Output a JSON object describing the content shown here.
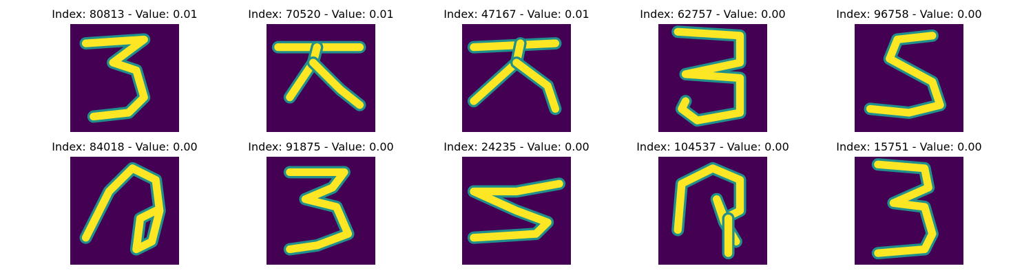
{
  "colors": {
    "background": "#440154",
    "mid": "#21908d",
    "foreground": "#fde725"
  },
  "panels": [
    {
      "title": "Index: 80813 - Value: 0.01",
      "glyph": "three-a",
      "strokes": [
        [
          [
            4,
            5
          ],
          [
            19,
            4
          ],
          [
            11,
            10
          ],
          [
            17,
            12
          ],
          [
            19,
            19
          ],
          [
            15,
            23
          ],
          [
            6,
            24
          ]
        ]
      ]
    },
    {
      "title": "Index: 70520 - Value: 0.01",
      "glyph": "dae-a",
      "strokes": [
        [
          [
            3,
            6
          ],
          [
            24,
            6
          ]
        ],
        [
          [
            13,
            6
          ],
          [
            12,
            10
          ],
          [
            6,
            19
          ]
        ],
        [
          [
            12,
            10
          ],
          [
            19,
            17
          ],
          [
            24,
            21
          ]
        ]
      ]
    },
    {
      "title": "Index: 47167 - Value: 0.01",
      "glyph": "dae-b",
      "strokes": [
        [
          [
            3,
            6
          ],
          [
            24,
            5
          ]
        ],
        [
          [
            15,
            5
          ],
          [
            14,
            10
          ],
          [
            3,
            20
          ]
        ],
        [
          [
            14,
            10
          ],
          [
            22,
            16
          ],
          [
            24,
            22
          ]
        ]
      ]
    },
    {
      "title": "Index: 62757 - Value: 0.00",
      "glyph": "three-b",
      "strokes": [
        [
          [
            5,
            2
          ],
          [
            21,
            3
          ],
          [
            21,
            10
          ],
          [
            7,
            13
          ],
          [
            21,
            14
          ],
          [
            21,
            23
          ],
          [
            10,
            25
          ],
          [
            6,
            22
          ],
          [
            7,
            20
          ]
        ]
      ]
    },
    {
      "title": "Index: 96758 - Value: 0.00",
      "glyph": "five-a",
      "strokes": [
        [
          [
            20,
            3
          ],
          [
            11,
            4
          ],
          [
            9,
            9
          ],
          [
            20,
            15
          ],
          [
            22,
            21
          ],
          [
            14,
            23
          ],
          [
            4,
            22
          ]
        ]
      ]
    },
    {
      "title": "Index: 84018 - Value: 0.00",
      "glyph": "loop-a",
      "strokes": [
        [
          [
            4,
            21
          ],
          [
            10,
            9
          ],
          [
            16,
            3
          ],
          [
            22,
            6
          ],
          [
            23,
            14
          ],
          [
            21,
            22
          ],
          [
            17,
            24
          ],
          [
            18,
            16
          ],
          [
            22,
            14
          ]
        ]
      ]
    },
    {
      "title": "Index: 91875 - Value: 0.00",
      "glyph": "three-c",
      "strokes": [
        [
          [
            6,
            4
          ],
          [
            20,
            4
          ],
          [
            17,
            8
          ],
          [
            10,
            11
          ],
          [
            18,
            13
          ],
          [
            21,
            20
          ],
          [
            13,
            23
          ],
          [
            6,
            24
          ]
        ]
      ]
    },
    {
      "title": "Index: 24235 - Value: 0.00",
      "glyph": "five-b",
      "strokes": [
        [
          [
            25,
            7
          ],
          [
            14,
            9
          ],
          [
            3,
            9
          ],
          [
            14,
            14
          ],
          [
            22,
            17
          ],
          [
            19,
            20
          ],
          [
            3,
            21
          ]
        ]
      ]
    },
    {
      "title": "Index: 104537 - Value: 0.00",
      "glyph": "loop-b",
      "strokes": [
        [
          [
            5,
            19
          ],
          [
            6,
            7
          ],
          [
            14,
            3
          ],
          [
            21,
            6
          ],
          [
            21,
            14
          ],
          [
            17,
            16
          ],
          [
            15,
            11
          ],
          [
            17,
            17
          ],
          [
            20,
            22
          ]
        ],
        [
          [
            18,
            16
          ],
          [
            18,
            25
          ]
        ]
      ]
    },
    {
      "title": "Index: 15751 - Value: 0.00",
      "glyph": "three-d",
      "strokes": [
        [
          [
            6,
            2
          ],
          [
            18,
            3
          ],
          [
            19,
            8
          ],
          [
            10,
            12
          ],
          [
            18,
            13
          ],
          [
            20,
            20
          ],
          [
            18,
            24
          ],
          [
            6,
            25
          ]
        ]
      ]
    }
  ]
}
